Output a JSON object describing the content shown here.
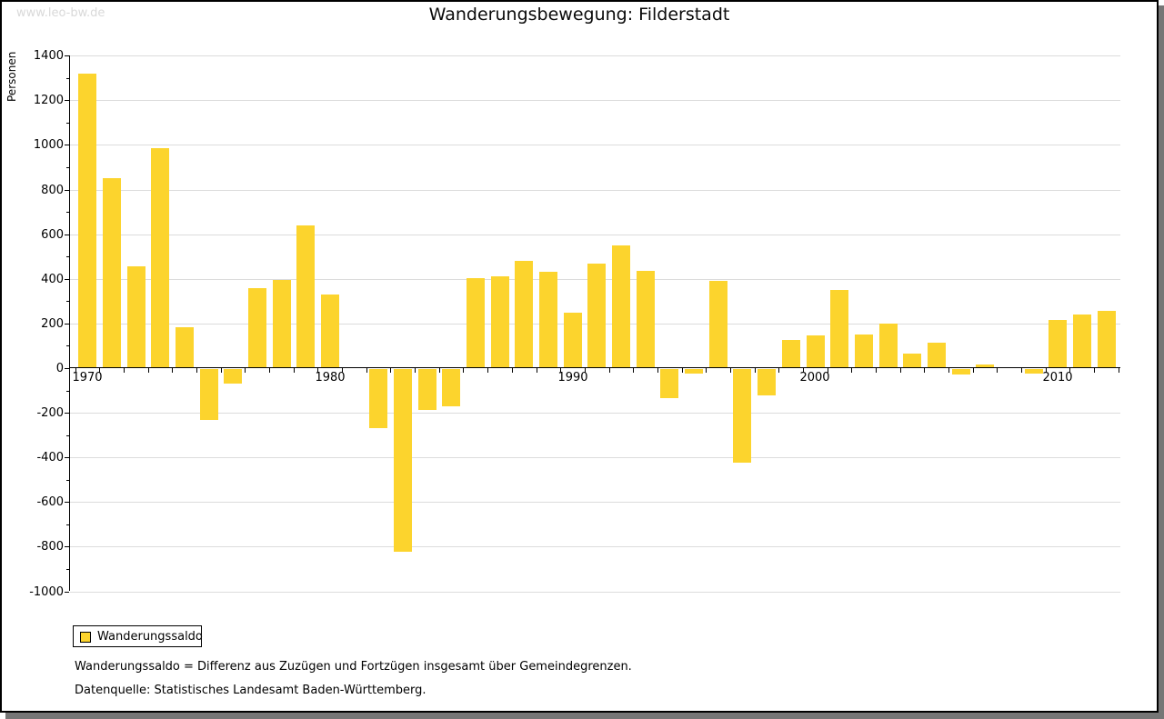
{
  "watermark": "www.leo-bw.de",
  "chart_data": {
    "type": "bar",
    "title": "Wanderungsbewegung: Filderstadt",
    "xlabel": "",
    "ylabel": "Personen",
    "ylim": [
      -1000,
      1400
    ],
    "ytick_step": 200,
    "ytick_minor_step": 100,
    "grid": true,
    "x_axis_decade_labels": [
      "1970",
      "1980",
      "1990",
      "2000",
      "2010"
    ],
    "categories": [
      1970,
      1971,
      1972,
      1973,
      1974,
      1975,
      1976,
      1977,
      1978,
      1979,
      1980,
      1981,
      1982,
      1983,
      1984,
      1985,
      1986,
      1987,
      1988,
      1989,
      1990,
      1991,
      1992,
      1993,
      1994,
      1995,
      1996,
      1997,
      1998,
      1999,
      2000,
      2001,
      2002,
      2003,
      2004,
      2005,
      2006,
      2007,
      2008,
      2009,
      2010,
      2011,
      2012
    ],
    "series": [
      {
        "name": "Wanderungssaldo",
        "color": "#fcd42d",
        "values": [
          1320,
          850,
          455,
          985,
          185,
          -230,
          -65,
          360,
          395,
          640,
          330,
          0,
          -265,
          -820,
          -185,
          -165,
          405,
          410,
          480,
          430,
          250,
          470,
          550,
          435,
          -130,
          -20,
          390,
          -420,
          -120,
          125,
          145,
          350,
          150,
          200,
          65,
          115,
          -25,
          15,
          5,
          -20,
          215,
          240,
          255
        ]
      }
    ],
    "legend_position": "bottom-left"
  },
  "legend": {
    "label": "Wanderungssaldo",
    "swatch_color": "#fcd42d"
  },
  "footnotes": [
    "Wanderungssaldo = Differenz aus Zuzügen und Fortzügen insgesamt über Gemeindegrenzen.",
    "Datenquelle: Statistisches Landesamt Baden-Württemberg."
  ],
  "colors": {
    "bar": "#fcd42d",
    "gridline": "#dcdcdc",
    "axis": "#000000",
    "watermark": "#d9d9d9",
    "frame_shadow": "#767676"
  }
}
